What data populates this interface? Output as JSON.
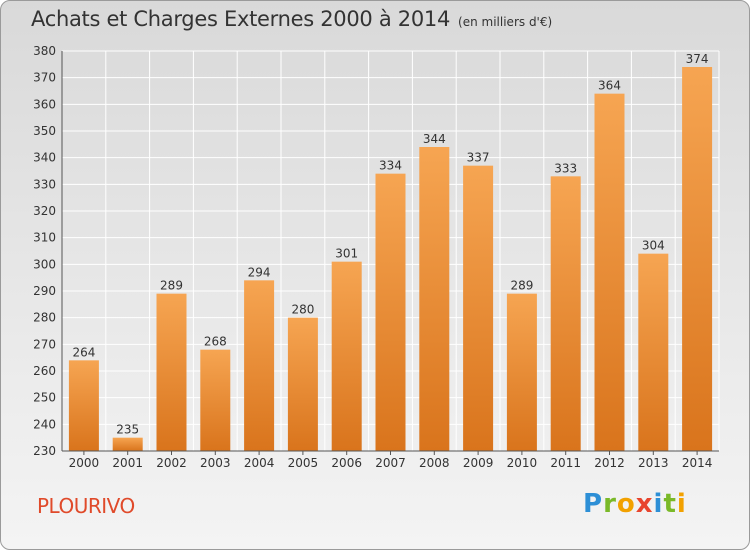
{
  "title": "Achats et Charges Externes 2000 à 2014",
  "unit": "(en milliers d'€)",
  "commune": "PLOURIVO",
  "logo": {
    "text": "Proxiti",
    "letters": [
      {
        "char": "P",
        "color": "#2d8fd6"
      },
      {
        "char": "r",
        "color": "#7ab928"
      },
      {
        "char": "o",
        "color": "#f2a100"
      },
      {
        "char": "x",
        "color": "#e8452e"
      },
      {
        "char": "i",
        "color": "#2d8fd6"
      },
      {
        "char": "t",
        "color": "#7ab928"
      },
      {
        "char": "i",
        "color": "#f2a100"
      }
    ]
  },
  "colors": {
    "bar_top": "#f6a552",
    "bar_bottom": "#d9741c",
    "grid": "#ffffff",
    "axis": "#555555",
    "text": "#333333"
  },
  "chart_data": {
    "type": "bar",
    "categories": [
      "2000",
      "2001",
      "2002",
      "2003",
      "2004",
      "2005",
      "2006",
      "2007",
      "2008",
      "2009",
      "2010",
      "2011",
      "2012",
      "2013",
      "2014"
    ],
    "values": [
      264,
      235,
      289,
      268,
      294,
      280,
      301,
      334,
      344,
      337,
      289,
      333,
      364,
      304,
      374
    ],
    "ylim": [
      230,
      380
    ],
    "yticks": [
      230,
      240,
      250,
      260,
      270,
      280,
      290,
      300,
      310,
      320,
      330,
      340,
      350,
      360,
      370,
      380
    ],
    "grid": true,
    "legend": "none"
  }
}
